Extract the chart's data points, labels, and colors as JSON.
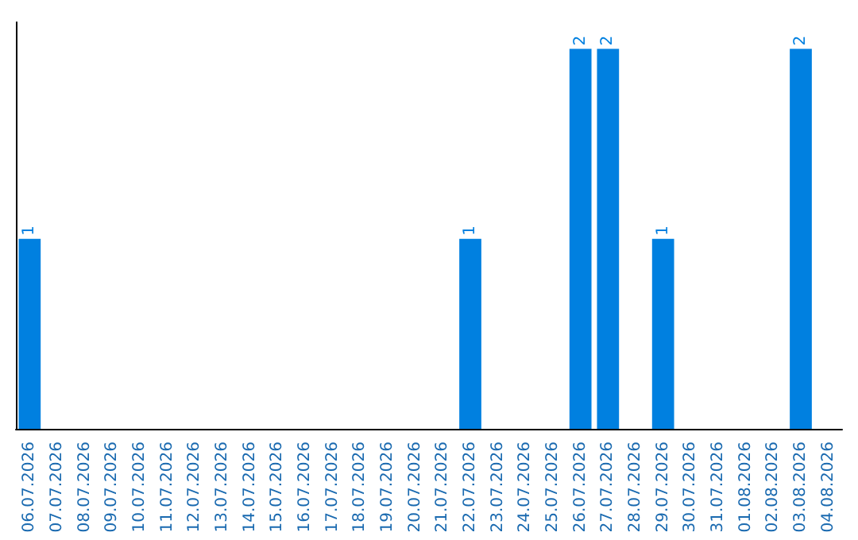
{
  "chart_data": {
    "type": "bar",
    "categories": [
      "06.07.2026",
      "07.07.2026",
      "08.07.2026",
      "09.07.2026",
      "10.07.2026",
      "11.07.2026",
      "12.07.2026",
      "13.07.2026",
      "14.07.2026",
      "15.07.2026",
      "16.07.2026",
      "17.07.2026",
      "18.07.2026",
      "19.07.2026",
      "20.07.2026",
      "21.07.2026",
      "22.07.2026",
      "23.07.2026",
      "24.07.2026",
      "25.07.2026",
      "26.07.2026",
      "27.07.2026",
      "28.07.2026",
      "29.07.2026",
      "30.07.2026",
      "31.07.2026",
      "01.08.2026",
      "02.08.2026",
      "03.08.2026",
      "04.08.2026"
    ],
    "values": [
      1,
      0,
      0,
      0,
      0,
      0,
      0,
      0,
      0,
      0,
      0,
      0,
      0,
      0,
      0,
      0,
      1,
      0,
      0,
      0,
      2,
      2,
      0,
      1,
      0,
      0,
      0,
      0,
      2,
      0
    ],
    "value_labels": [
      "1",
      null,
      null,
      null,
      null,
      null,
      null,
      null,
      null,
      null,
      null,
      null,
      null,
      null,
      null,
      null,
      "1",
      null,
      null,
      null,
      "2",
      "2",
      null,
      "1",
      null,
      null,
      null,
      null,
      "2",
      null
    ],
    "color": "#0080e0",
    "grid": false
  }
}
